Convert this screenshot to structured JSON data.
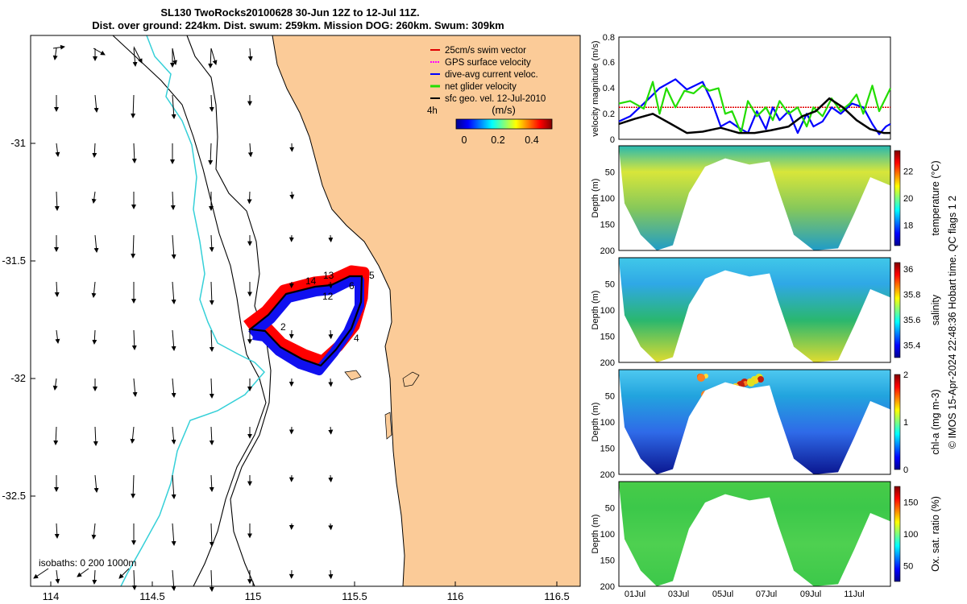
{
  "title_line1": "SL130 TwoRocks20100628 30-Jun 12Z to 12-Jul 11Z.",
  "title_line2": "Dist. over ground: 224km. Dist. swum: 259km. Mission DOG: 260km. Swum: 309km",
  "map": {
    "x_ticks": [
      "114",
      "114.5",
      "115",
      "115.5",
      "116",
      "116.5"
    ],
    "y_ticks": [
      "-31",
      "-31.5",
      "-32",
      "-32.5"
    ],
    "legend": [
      {
        "label": "25cm/s swim vector",
        "color": "#e00000"
      },
      {
        "label": "GPS surface velocity",
        "color": "#ff00ff"
      },
      {
        "label": "dive-avg current veloc.",
        "color": "#0000ff"
      },
      {
        "label": "net glider velocity",
        "color": "#22dd00"
      },
      {
        "label": "sfc geo. vel. 12-Jul-2010",
        "color": "#000000"
      }
    ],
    "time_label": "4h",
    "colorbar_title": "(m/s)",
    "colorbar_ticks": [
      "0",
      "0.2",
      "0.4"
    ],
    "isobaths_label": "isobaths: 0   200  1000m",
    "track_labels": [
      "14",
      "13",
      "12",
      "6",
      "5",
      "2",
      "4"
    ],
    "ocean_color": "#ffffff",
    "land_color": "#fbcb98"
  },
  "chart_data": [
    {
      "type": "line",
      "title": "",
      "ylabel": "velocity magnitude (m/s)",
      "ylim": [
        0,
        0.8
      ],
      "y_ticks": [
        "0",
        "0.2",
        "0.4",
        "0.6",
        "0.8"
      ],
      "x_range_days": [
        30.5,
        42.5
      ],
      "series": [
        {
          "name": "25cm/s swim vector",
          "color": "#e00000",
          "x": [
            30.5,
            42.5
          ],
          "y": [
            0.25,
            0.25
          ]
        },
        {
          "name": "dive-avg current veloc.",
          "color": "#0000ff",
          "x": [
            30.5,
            31.0,
            31.6,
            32.3,
            33.0,
            33.5,
            34.2,
            34.6,
            35.0,
            35.4,
            35.8,
            36.2,
            36.6,
            37.0,
            37.3,
            37.6,
            38.0,
            38.4,
            38.8,
            39.1,
            39.5,
            39.9,
            40.3,
            40.8,
            41.3,
            41.7,
            42.0,
            42.3,
            42.5
          ],
          "y": [
            0.14,
            0.18,
            0.28,
            0.4,
            0.47,
            0.39,
            0.45,
            0.3,
            0.1,
            0.14,
            0.09,
            0.05,
            0.22,
            0.08,
            0.25,
            0.15,
            0.22,
            0.05,
            0.2,
            0.1,
            0.14,
            0.25,
            0.2,
            0.28,
            0.25,
            0.12,
            0.04,
            0.1,
            0.12
          ]
        },
        {
          "name": "net glider velocity",
          "color": "#22dd00",
          "x": [
            30.5,
            31.0,
            31.6,
            32.0,
            32.3,
            32.6,
            33.0,
            33.4,
            33.8,
            34.2,
            34.5,
            34.9,
            35.2,
            35.5,
            35.9,
            36.2,
            36.6,
            37.0,
            37.3,
            37.6,
            38.0,
            38.4,
            38.8,
            39.1,
            39.5,
            39.9,
            40.3,
            40.7,
            41.0,
            41.3,
            41.7,
            42.0,
            42.5
          ],
          "y": [
            0.28,
            0.3,
            0.24,
            0.45,
            0.2,
            0.4,
            0.25,
            0.38,
            0.36,
            0.42,
            0.38,
            0.4,
            0.2,
            0.22,
            0.05,
            0.3,
            0.18,
            0.25,
            0.15,
            0.3,
            0.2,
            0.25,
            0.1,
            0.25,
            0.18,
            0.32,
            0.22,
            0.28,
            0.35,
            0.2,
            0.42,
            0.22,
            0.4
          ]
        },
        {
          "name": "sfc geo. vel.",
          "color": "#000000",
          "x": [
            30.5,
            31.2,
            32.0,
            32.8,
            33.5,
            34.2,
            35.0,
            35.8,
            36.5,
            37.2,
            38.0,
            38.6,
            39.2,
            39.8,
            40.4,
            41.0,
            41.6,
            42.2,
            42.5
          ],
          "y": [
            0.12,
            0.16,
            0.2,
            0.12,
            0.05,
            0.06,
            0.09,
            0.05,
            0.05,
            0.07,
            0.1,
            0.18,
            0.22,
            0.32,
            0.25,
            0.15,
            0.08,
            0.05,
            0.05
          ]
        }
      ]
    },
    {
      "type": "heatmap",
      "ylabel": "Depth (m)",
      "y_ticks": [
        "50",
        "100",
        "150",
        "200"
      ],
      "colorbar_label": "temperature (°C)",
      "colorbar_ticks": [
        "18",
        "20",
        "22"
      ],
      "colorbar_range": [
        16.5,
        23.5
      ]
    },
    {
      "type": "heatmap",
      "ylabel": "Depth (m)",
      "y_ticks": [
        "50",
        "100",
        "150",
        "200"
      ],
      "colorbar_label": "salinity",
      "colorbar_ticks": [
        "35.4",
        "35.6",
        "35.8",
        "36"
      ],
      "colorbar_range": [
        35.3,
        36.05
      ]
    },
    {
      "type": "heatmap",
      "ylabel": "Depth (m)",
      "y_ticks": [
        "50",
        "100",
        "150",
        "200"
      ],
      "colorbar_label": "chl-a (mg m-3)",
      "colorbar_ticks": [
        "0",
        "1",
        "2"
      ],
      "colorbar_range": [
        0,
        2
      ]
    },
    {
      "type": "heatmap",
      "ylabel": "Depth (m)",
      "y_ticks": [
        "50",
        "100",
        "150",
        "200"
      ],
      "colorbar_label": "Ox. sat. ratio (%)",
      "colorbar_ticks": [
        "50",
        "100",
        "150"
      ],
      "colorbar_range": [
        25,
        175
      ]
    }
  ],
  "date_ticks": [
    "01Jul",
    "03Jul",
    "05Jul",
    "07Jul",
    "09Jul",
    "11Jul"
  ],
  "side_note": "© IMOS 15-Apr-2024 22:48:36 Hobart time. QC flags 1  2"
}
